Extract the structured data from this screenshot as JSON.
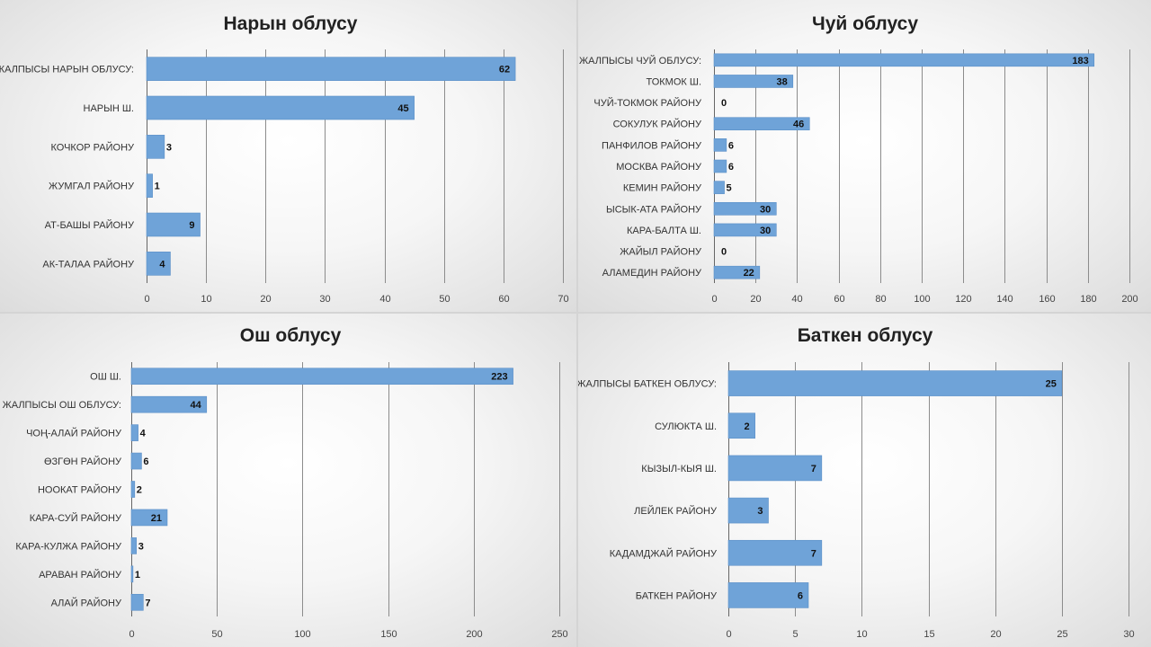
{
  "colors": {
    "bar": "#6fa3d8",
    "bar_edge": "#5b8fc7"
  },
  "chart_data": [
    {
      "type": "bar",
      "orientation": "horizontal",
      "title": "Нарын облусу",
      "categories": [
        "ЖАЛПЫСЫ  НАРЫН ОБЛУСУ:",
        "НАРЫН Ш.",
        "КОЧКОР РАЙОНУ",
        "ЖУМГАЛ РАЙОНУ",
        "АТ-БАШЫ РАЙОНУ",
        "АК-ТАЛАА РАЙОНУ"
      ],
      "values": [
        62,
        45,
        3,
        1,
        9,
        4
      ],
      "xlim": [
        0,
        70
      ],
      "xticks": [
        0,
        10,
        20,
        30,
        40,
        50,
        60,
        70
      ]
    },
    {
      "type": "bar",
      "orientation": "horizontal",
      "title": "Чуй облусу",
      "categories": [
        "ЖАЛПЫСЫ  ЧУЙ ОБЛУСУ:",
        "ТОКМОК Ш.",
        "ЧУЙ-ТОКМОК РАЙОНУ",
        "СОКУЛУК РАЙОНУ",
        "ПАНФИЛОВ РАЙОНУ",
        "МОСКВА РАЙОНУ",
        "КЕМИН РАЙОНУ",
        "ЫСЫК-АТА РАЙОНУ",
        "КАРА-БАЛТА Ш.",
        "ЖАЙЫЛ РАЙОНУ",
        "АЛАМЕДИН РАЙОНУ"
      ],
      "values": [
        183,
        38,
        0,
        46,
        6,
        6,
        5,
        30,
        30,
        0,
        22
      ],
      "xlim": [
        0,
        200
      ],
      "xticks": [
        0,
        20,
        40,
        60,
        80,
        100,
        120,
        140,
        160,
        180,
        200
      ]
    },
    {
      "type": "bar",
      "orientation": "horizontal",
      "title": "Ош облусу",
      "categories": [
        "ОШ Ш.",
        "ЖАЛПЫСЫ  ОШ ОБЛУСУ:",
        "ЧОҢ-АЛАЙ РАЙОНУ",
        "ӨЗГӨН РАЙОНУ",
        "НООКАТ РАЙОНУ",
        "КАРА-СУЙ РАЙОНУ",
        "КАРА-КУЛЖА РАЙОНУ",
        "АРАВАН РАЙОНУ",
        "АЛАЙ РАЙОНУ"
      ],
      "values": [
        223,
        44,
        4,
        6,
        2,
        21,
        3,
        1,
        7
      ],
      "xlim": [
        0,
        250
      ],
      "xticks": [
        0,
        50,
        100,
        150,
        200,
        250
      ]
    },
    {
      "type": "bar",
      "orientation": "horizontal",
      "title": "Баткен облусу",
      "categories": [
        "ЖАЛПЫСЫ  БАТКЕН ОБЛУСУ:",
        "СУЛЮКТА Ш.",
        "КЫЗЫЛ-КЫЯ Ш.",
        "ЛЕЙЛЕК РАЙОНУ",
        "КАДАМДЖАЙ РАЙОНУ",
        "БАТКЕН РАЙОНУ"
      ],
      "values": [
        25,
        2,
        7,
        3,
        7,
        6
      ],
      "xlim": [
        0,
        30
      ],
      "xticks": [
        0,
        5,
        10,
        15,
        20,
        25,
        30
      ]
    }
  ]
}
